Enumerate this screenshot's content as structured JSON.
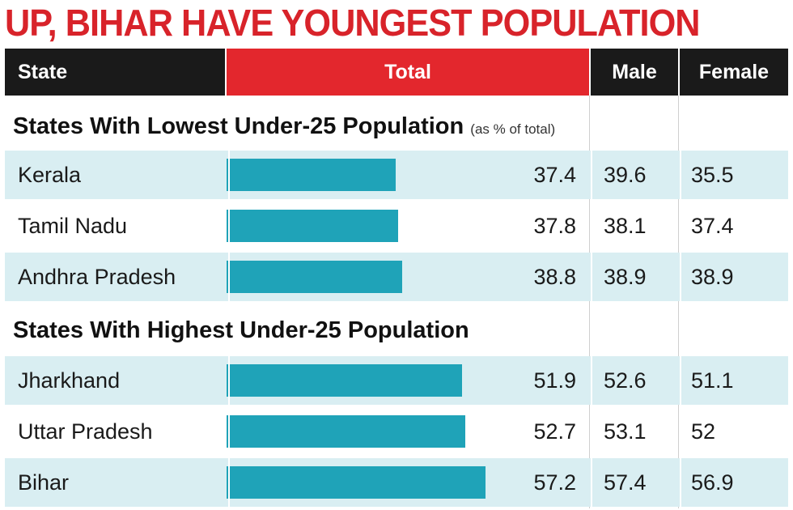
{
  "title": "UP, BIHAR HAVE YOUNGEST POPULATION",
  "headers": {
    "state": "State",
    "total": "Total",
    "male": "Male",
    "female": "Female"
  },
  "sections": [
    {
      "heading": "States With Lowest Under-25 Population",
      "note": "(as % of total)",
      "rows": [
        {
          "state": "Kerala",
          "total": "37.4",
          "male": "39.6",
          "female": "35.5"
        },
        {
          "state": "Tamil Nadu",
          "total": "37.8",
          "male": "38.1",
          "female": "37.4"
        },
        {
          "state": "Andhra Pradesh",
          "total": "38.8",
          "male": "38.9",
          "female": "38.9"
        }
      ]
    },
    {
      "heading": "States With Highest Under-25 Population",
      "note": "",
      "rows": [
        {
          "state": "Jharkhand",
          "total": "51.9",
          "male": "52.6",
          "female": "51.1"
        },
        {
          "state": "Uttar Pradesh",
          "total": "52.7",
          "male": "53.1",
          "female": "52"
        },
        {
          "state": "Bihar",
          "total": "57.2",
          "male": "57.4",
          "female": "56.9"
        }
      ]
    }
  ],
  "colors": {
    "title": "#d8232a",
    "header_dark": "#1a1a1a",
    "header_red": "#e3272d",
    "bar": "#1fa3b8",
    "row_shade": "#d9eef2"
  },
  "chart_data": {
    "type": "bar",
    "title": "UP, BIHAR HAVE YOUNGEST POPULATION",
    "xlabel": "",
    "ylabel": "",
    "categories": [
      "Kerala",
      "Tamil Nadu",
      "Andhra Pradesh",
      "Jharkhand",
      "Uttar Pradesh",
      "Bihar"
    ],
    "series": [
      {
        "name": "Total",
        "values": [
          37.4,
          37.8,
          38.8,
          51.9,
          52.7,
          57.2
        ]
      },
      {
        "name": "Male",
        "values": [
          39.6,
          38.1,
          38.9,
          52.6,
          53.1,
          57.4
        ]
      },
      {
        "name": "Female",
        "values": [
          35.5,
          37.4,
          38.9,
          51.1,
          52,
          56.9
        ]
      }
    ],
    "bar_series": "Total",
    "orientation": "horizontal",
    "xlim": [
      0,
      80
    ],
    "grid": false,
    "legend": "none"
  }
}
